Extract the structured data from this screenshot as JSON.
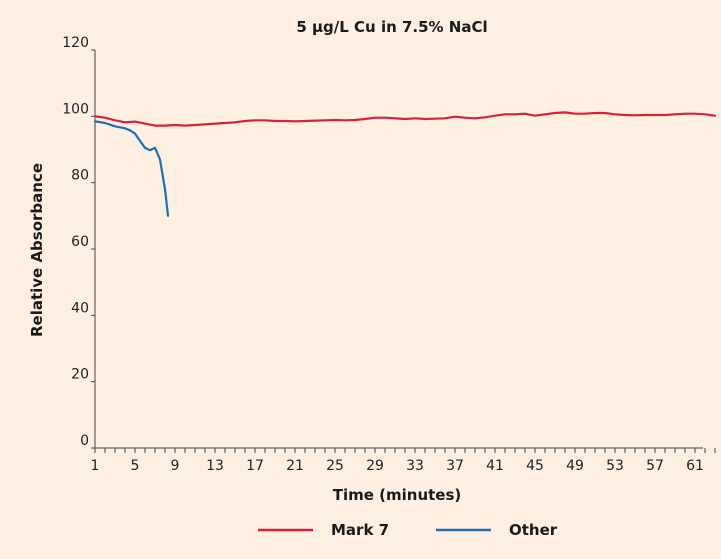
{
  "chart_data": {
    "type": "line",
    "title": "5 µg/L Cu in 7.5% NaCl",
    "xlabel": "Time (minutes)",
    "ylabel": "Relative Absorbance",
    "xlim": [
      1,
      64
    ],
    "ylim": [
      0,
      120
    ],
    "x_ticks": [
      1,
      5,
      9,
      13,
      17,
      21,
      25,
      29,
      33,
      37,
      41,
      45,
      49,
      53,
      57,
      61
    ],
    "x_tick_labels": [
      "1",
      "5",
      "9",
      "13",
      "17",
      "21",
      "25",
      "29",
      "33",
      "37",
      "41",
      "45",
      "49",
      "53",
      "57",
      "61"
    ],
    "y_ticks": [
      0,
      20,
      40,
      60,
      80,
      100,
      120
    ],
    "y_tick_labels": [
      "0",
      "20",
      "40",
      "60",
      "80",
      "100",
      "120"
    ],
    "grid": false,
    "legend_position": "bottom-center",
    "series": [
      {
        "name": "Mark 7",
        "color": "#d6213a",
        "x": [
          1,
          2,
          3,
          4,
          5,
          6,
          7,
          8,
          9,
          10,
          11,
          12,
          13,
          14,
          15,
          16,
          17,
          18,
          19,
          20,
          21,
          22,
          23,
          24,
          25,
          26,
          27,
          28,
          29,
          30,
          31,
          32,
          33,
          34,
          35,
          36,
          37,
          38,
          39,
          40,
          41,
          42,
          43,
          44,
          45,
          46,
          47,
          48,
          49,
          50,
          51,
          52,
          53,
          54,
          55,
          56,
          57,
          58,
          59,
          60,
          61,
          62,
          63
        ],
        "values": [
          100,
          99.6,
          98.8,
          98.2,
          98.4,
          97.8,
          97.2,
          97.2,
          97.4,
          97.2,
          97.4,
          97.6,
          97.8,
          98.0,
          98.2,
          98.6,
          98.8,
          98.8,
          98.6,
          98.6,
          98.5,
          98.6,
          98.7,
          98.8,
          98.9,
          98.8,
          98.9,
          99.2,
          99.6,
          99.6,
          99.4,
          99.2,
          99.4,
          99.2,
          99.3,
          99.4,
          99.9,
          99.6,
          99.4,
          99.7,
          100.2,
          100.6,
          100.6,
          100.8,
          100.2,
          100.6,
          101.0,
          101.2,
          100.8,
          100.8,
          101.0,
          101.0,
          100.6,
          100.4,
          100.3,
          100.4,
          100.4,
          100.4,
          100.6,
          100.8,
          100.8,
          100.6,
          100.2
        ]
      },
      {
        "name": "Other",
        "color": "#1f6fb4",
        "x": [
          1,
          2,
          3,
          4,
          4.5,
          5,
          5.5,
          6,
          6.5,
          7,
          7.5,
          8,
          8.3
        ],
        "values": [
          98.5,
          98.0,
          97.0,
          96.4,
          95.8,
          94.8,
          92.6,
          90.5,
          89.8,
          90.5,
          87.0,
          78.0,
          70.0
        ]
      }
    ]
  }
}
